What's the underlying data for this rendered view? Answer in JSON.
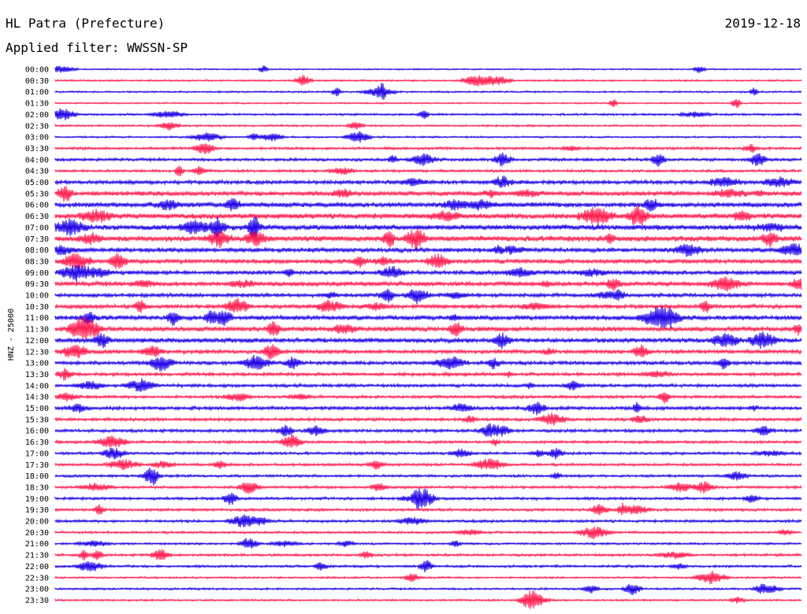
{
  "header": {
    "station": "HL Patra (Prefecture)",
    "date": "2019-12-18",
    "filter_label": "Applied filter: WWSSN-SP"
  },
  "colors": {
    "trace_primary": "#1a00e6",
    "trace_secondary": "#ff1a4d",
    "text": "#000000",
    "background": "#ffffff"
  },
  "chart_data": {
    "type": "line",
    "chart_kind": "helicorder",
    "ylabel": "HNZ - 25000",
    "rows": [
      {
        "label": "00:00",
        "activity": 0.1
      },
      {
        "label": "00:30",
        "activity": 0.15
      },
      {
        "label": "01:00",
        "activity": 0.15
      },
      {
        "label": "01:30",
        "activity": 0.12
      },
      {
        "label": "02:00",
        "activity": 0.22
      },
      {
        "label": "02:30",
        "activity": 0.18
      },
      {
        "label": "03:00",
        "activity": 0.16
      },
      {
        "label": "03:30",
        "activity": 0.3
      },
      {
        "label": "04:00",
        "activity": 0.35
      },
      {
        "label": "04:30",
        "activity": 0.3
      },
      {
        "label": "05:00",
        "activity": 0.5
      },
      {
        "label": "05:30",
        "activity": 0.62
      },
      {
        "label": "06:00",
        "activity": 0.7
      },
      {
        "label": "06:30",
        "activity": 0.75
      },
      {
        "label": "07:00",
        "activity": 0.78
      },
      {
        "label": "07:30",
        "activity": 0.8
      },
      {
        "label": "08:00",
        "activity": 0.6
      },
      {
        "label": "08:30",
        "activity": 0.58
      },
      {
        "label": "09:00",
        "activity": 0.55
      },
      {
        "label": "09:30",
        "activity": 0.62
      },
      {
        "label": "10:00",
        "activity": 0.5
      },
      {
        "label": "10:30",
        "activity": 0.52
      },
      {
        "label": "11:00",
        "activity": 0.62
      },
      {
        "label": "11:30",
        "activity": 0.65
      },
      {
        "label": "12:00",
        "activity": 0.62
      },
      {
        "label": "12:30",
        "activity": 0.5
      },
      {
        "label": "13:00",
        "activity": 0.48
      },
      {
        "label": "13:30",
        "activity": 0.42
      },
      {
        "label": "14:00",
        "activity": 0.4
      },
      {
        "label": "14:30",
        "activity": 0.35
      },
      {
        "label": "15:00",
        "activity": 0.45
      },
      {
        "label": "15:30",
        "activity": 0.38
      },
      {
        "label": "16:00",
        "activity": 0.38
      },
      {
        "label": "16:30",
        "activity": 0.32
      },
      {
        "label": "17:00",
        "activity": 0.32
      },
      {
        "label": "17:30",
        "activity": 0.3
      },
      {
        "label": "18:00",
        "activity": 0.3
      },
      {
        "label": "18:30",
        "activity": 0.3
      },
      {
        "label": "19:00",
        "activity": 0.32
      },
      {
        "label": "19:30",
        "activity": 0.32
      },
      {
        "label": "20:00",
        "activity": 0.3
      },
      {
        "label": "20:30",
        "activity": 0.25
      },
      {
        "label": "21:00",
        "activity": 0.22
      },
      {
        "label": "21:30",
        "activity": 0.28
      },
      {
        "label": "22:00",
        "activity": 0.28
      },
      {
        "label": "22:30",
        "activity": 0.18
      },
      {
        "label": "23:00",
        "activity": 0.2
      },
      {
        "label": "23:30",
        "activity": 0.18
      }
    ]
  }
}
